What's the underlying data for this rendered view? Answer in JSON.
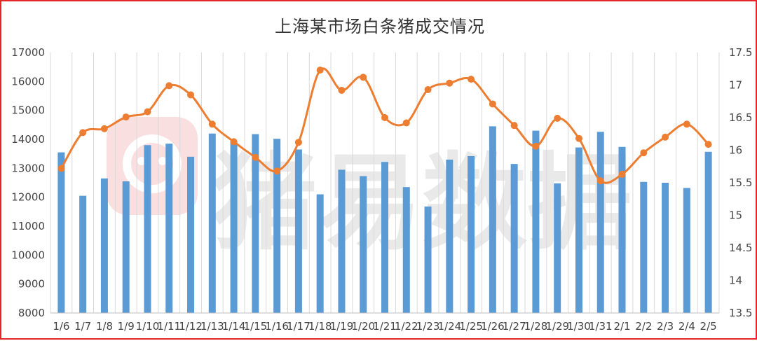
{
  "chart_data": {
    "type": "bar+line",
    "title": "上海某市场白条猪成交情况",
    "categories": [
      "1/6",
      "1/7",
      "1/8",
      "1/9",
      "1/10",
      "1/11",
      "1/12",
      "1/13",
      "1/14",
      "1/15",
      "1/16",
      "1/17",
      "1/18",
      "1/19",
      "1/20",
      "1/21",
      "1/22",
      "1/23",
      "1/24",
      "1/25",
      "1/26",
      "1/27",
      "1/28",
      "1/29",
      "1/30",
      "1/31",
      "2/1",
      "2/2",
      "2/3",
      "2/4",
      "2/5"
    ],
    "series": [
      {
        "type": "bar",
        "axis": "left",
        "color": "#5b9bd5",
        "values": [
          13550,
          12050,
          12650,
          12550,
          13800,
          13850,
          13400,
          14200,
          13950,
          14180,
          14020,
          13650,
          12100,
          12950,
          12730,
          13220,
          12350,
          11680,
          13300,
          13420,
          14450,
          13150,
          14300,
          12480,
          13720,
          14260,
          13740,
          12530,
          12500,
          12320,
          13570
        ]
      },
      {
        "type": "line",
        "axis": "right",
        "color": "#ed7d31",
        "smooth": true,
        "values": [
          15.72,
          16.27,
          16.33,
          16.51,
          16.59,
          16.99,
          16.85,
          16.4,
          16.13,
          15.89,
          15.68,
          16.12,
          17.23,
          16.92,
          17.12,
          16.5,
          16.42,
          16.93,
          17.03,
          17.09,
          16.71,
          16.38,
          16.06,
          16.49,
          16.18,
          15.53,
          15.63,
          15.96,
          16.2,
          16.4,
          16.09
        ]
      }
    ],
    "y_left": {
      "min": 8000,
      "max": 17000,
      "step": 1000,
      "labels": [
        "8000",
        "9000",
        "10000",
        "11000",
        "12000",
        "13000",
        "14000",
        "15000",
        "16000",
        "17000"
      ]
    },
    "y_right": {
      "min": 13.5,
      "max": 17.5,
      "step": 0.5,
      "labels": [
        "13.5",
        "14",
        "14.5",
        "15",
        "15.5",
        "16",
        "16.5",
        "17",
        "17.5"
      ]
    },
    "grid": "vertical",
    "legend": "none"
  },
  "watermark": {
    "text": "猪易数据",
    "icon": "pig-logo-icon",
    "color": "#e4262b"
  }
}
